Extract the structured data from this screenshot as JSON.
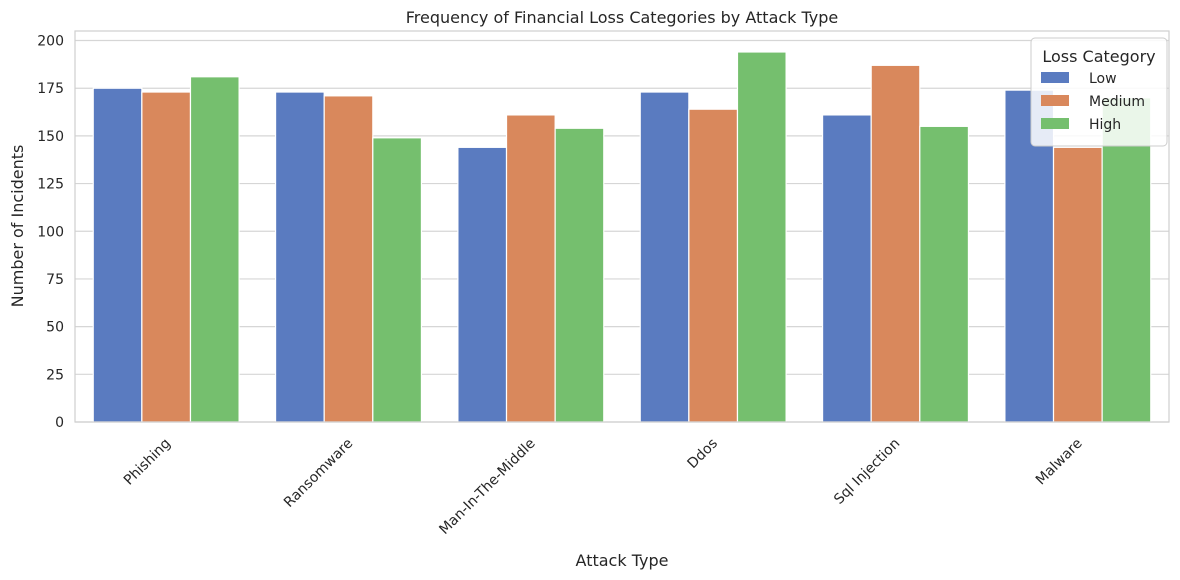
{
  "chart_data": {
    "type": "bar",
    "title": "Frequency of Financial Loss Categories by Attack Type",
    "xlabel": "Attack Type",
    "ylabel": "Number of Incidents",
    "categories": [
      "Phishing",
      "Ransomware",
      "Man-In-The-Middle",
      "Ddos",
      "Sql Injection",
      "Malware"
    ],
    "series": [
      {
        "name": "Low",
        "color": "#5a7bc0",
        "values": [
          175,
          173,
          144,
          173,
          161,
          174
        ]
      },
      {
        "name": "Medium",
        "color": "#d9885c",
        "values": [
          173,
          171,
          161,
          164,
          187,
          144
        ]
      },
      {
        "name": "High",
        "color": "#75bf6e",
        "values": [
          181,
          149,
          154,
          194,
          155,
          170
        ]
      }
    ],
    "ylim": [
      0,
      205
    ],
    "yticks": [
      0,
      25,
      50,
      75,
      100,
      125,
      150,
      175,
      200
    ],
    "grid": "y",
    "legend": {
      "title": "Loss Category",
      "placement": "top-right"
    }
  }
}
